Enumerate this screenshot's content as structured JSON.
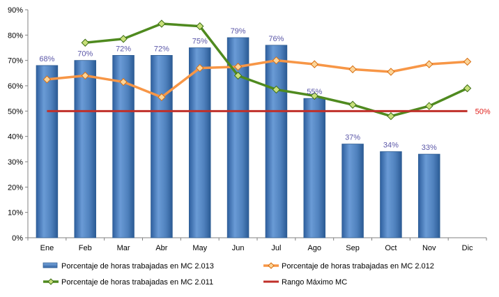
{
  "chart_data": {
    "type": "bar",
    "categories": [
      "Ene",
      "Feb",
      "Mar",
      "Abr",
      "May",
      "Jun",
      "Jul",
      "Ago",
      "Sep",
      "Oct",
      "Nov",
      "Dic"
    ],
    "ylim": [
      0,
      90
    ],
    "yticks": [
      "0%",
      "10%",
      "20%",
      "30%",
      "40%",
      "50%",
      "60%",
      "70%",
      "80%",
      "90%"
    ],
    "grid": false,
    "legend_position": "bottom",
    "series": [
      {
        "name": "Porcentaje de horas trabajadas en MC 2.013",
        "type": "bar",
        "color": "#4f81bd",
        "values": [
          68,
          70,
          72,
          72,
          75,
          79,
          76,
          55,
          37,
          34,
          33,
          null
        ],
        "labels": [
          "68%",
          "70%",
          "72%",
          "72%",
          "75%",
          "79%",
          "76%",
          "55%",
          "37%",
          "34%",
          "33%",
          ""
        ]
      },
      {
        "name": "Porcentaje de horas trabajadas en MC 2.012",
        "type": "line",
        "color": "#f79646",
        "values": [
          62.5,
          64,
          61.5,
          55.5,
          67,
          67.5,
          70,
          68.5,
          66.5,
          65.5,
          68.5,
          69.5
        ]
      },
      {
        "name": "Porcentaje de horas trabajadas en MC 2.011",
        "type": "line",
        "color": "#4f8a1f",
        "values": [
          null,
          77,
          78.5,
          84.5,
          83.5,
          64,
          58.5,
          56,
          52.5,
          48,
          52,
          59
        ]
      },
      {
        "name": "Rango Máximo MC",
        "type": "line",
        "color": "#c0302a",
        "values": [
          50,
          50,
          50,
          50,
          50,
          50,
          50,
          50,
          50,
          50,
          50,
          50
        ],
        "end_label": "50%"
      }
    ]
  }
}
